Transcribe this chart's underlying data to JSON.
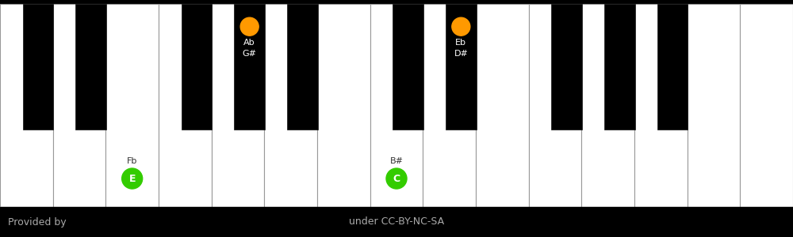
{
  "background_color": "#000000",
  "white_key_color": "#ffffff",
  "black_key_color": "#000000",
  "white_key_border": "#999999",
  "green_dot_color": "#33cc00",
  "orange_dot_color": "#ff9900",
  "footer_text_left": "Provided by",
  "footer_text_right": "under CC-BY-NC-SA",
  "footer_text_color": "#aaaaaa",
  "num_white_keys": 15,
  "white_notes": [
    {
      "index": 2,
      "dot_color": "#33cc00",
      "label": "E",
      "alias": "Fb"
    },
    {
      "index": 7,
      "dot_color": "#33cc00",
      "label": "C",
      "alias": "B#"
    }
  ],
  "black_notes": [
    {
      "after_white": 4,
      "dot_color": "#ff9900",
      "sharp_label": "G#",
      "flat_label": "Ab"
    },
    {
      "after_white": 8,
      "dot_color": "#ff9900",
      "sharp_label": "D#",
      "flat_label": "Eb"
    }
  ]
}
